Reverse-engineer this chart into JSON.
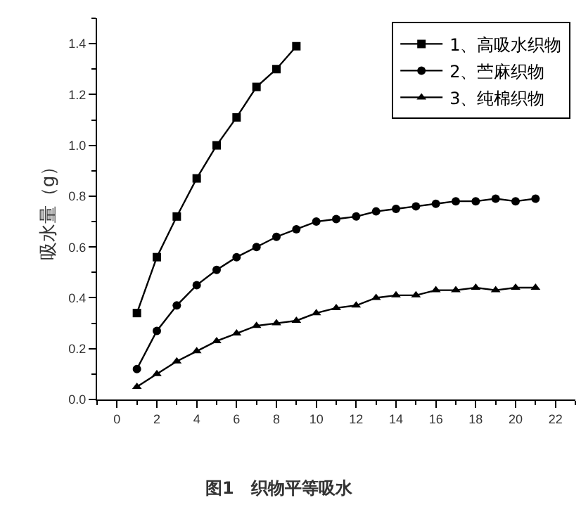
{
  "chart_data": {
    "type": "line",
    "ylabel": "吸水量（g）",
    "annotations": [
      "图1　织物平等吸水"
    ],
    "xlim": [
      -1,
      23
    ],
    "xticks": [
      0,
      2,
      4,
      6,
      8,
      10,
      12,
      14,
      16,
      18,
      20,
      22
    ],
    "ylim": [
      0,
      1.5
    ],
    "yticks": [
      {
        "value": 0,
        "label": "0.0"
      },
      0.2,
      0.4,
      0.6,
      0.8,
      {
        "value": 1,
        "label": "1.0"
      },
      1.2,
      1.4
    ],
    "grid": false,
    "legend": "top right",
    "line_style": "solid",
    "series": [
      {
        "name": "1、高吸水织物",
        "color": "#000000",
        "marker": "square",
        "x": [
          1,
          2,
          3,
          4,
          5,
          6,
          7,
          8,
          9
        ],
        "values": [
          0.34,
          0.56,
          0.72,
          0.87,
          1.0,
          1.11,
          1.23,
          1.3,
          1.39
        ]
      },
      {
        "name": "2、苎麻织物",
        "color": "#000000",
        "marker": "circle",
        "x": [
          1,
          2,
          3,
          4,
          5,
          6,
          7,
          8,
          9,
          10,
          11,
          12,
          13,
          14,
          15,
          16,
          17,
          18,
          19,
          20,
          21
        ],
        "values": [
          0.12,
          0.27,
          0.37,
          0.45,
          0.51,
          0.56,
          0.6,
          0.64,
          0.67,
          0.7,
          0.71,
          0.72,
          0.74,
          0.75,
          0.76,
          0.77,
          0.78,
          0.78,
          0.79,
          0.78,
          0.79
        ]
      },
      {
        "name": "3、纯棉织物",
        "color": "#000000",
        "marker": "triangle",
        "x": [
          1,
          2,
          3,
          4,
          5,
          6,
          7,
          8,
          9,
          10,
          11,
          12,
          13,
          14,
          15,
          16,
          17,
          18,
          19,
          20,
          21
        ],
        "values": [
          0.05,
          0.1,
          0.15,
          0.19,
          0.23,
          0.26,
          0.29,
          0.3,
          0.31,
          0.34,
          0.36,
          0.37,
          0.4,
          0.41,
          0.41,
          0.43,
          0.43,
          0.44,
          0.43,
          0.44,
          0.44
        ]
      }
    ]
  }
}
